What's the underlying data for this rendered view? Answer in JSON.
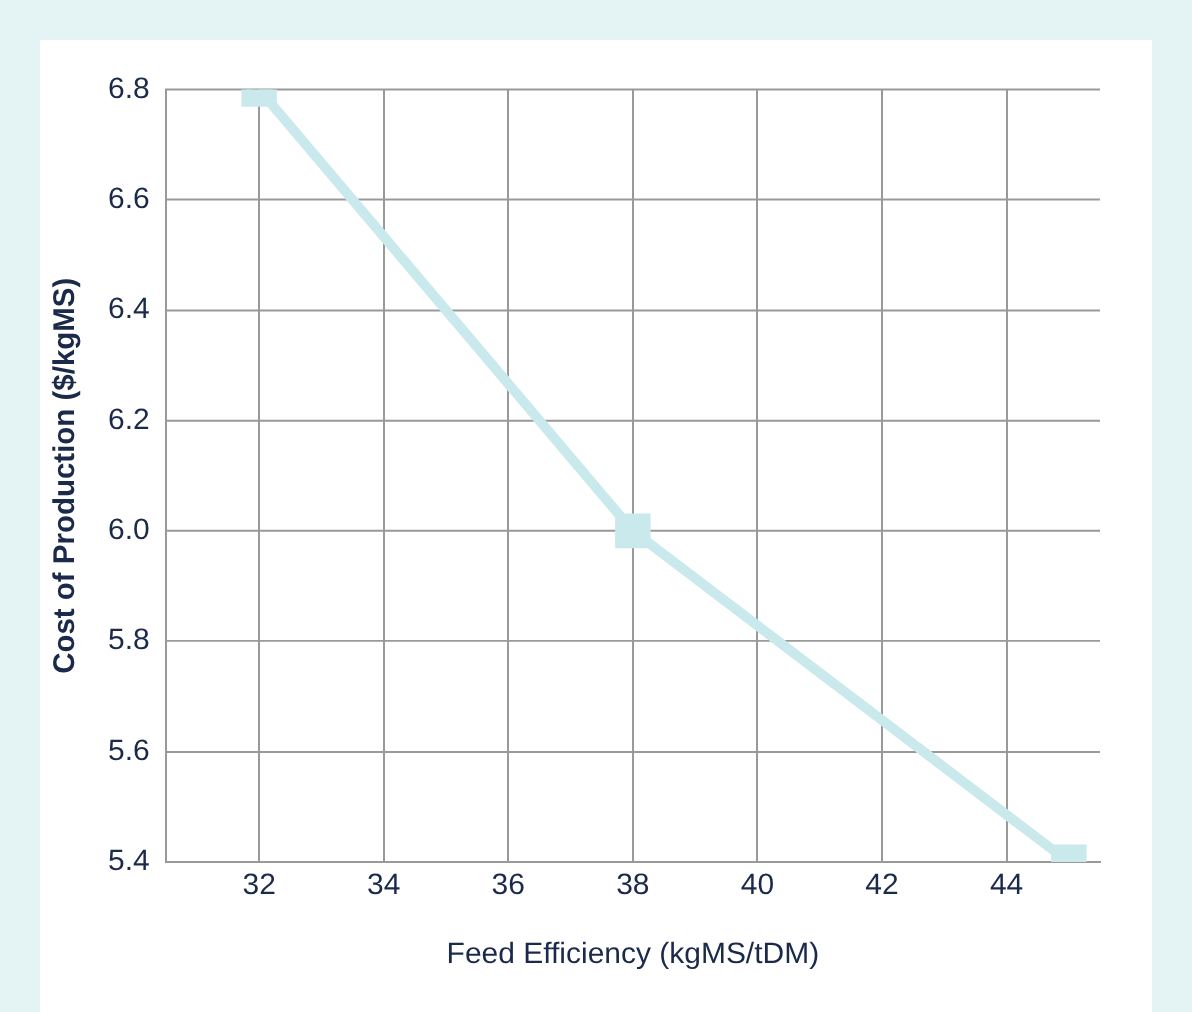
{
  "chart_data": {
    "type": "line",
    "xlabel": "Feed Efficiency (kgMS/tDM)",
    "ylabel": "Cost of Production ($/kgMS)",
    "x": [
      32,
      38,
      45
    ],
    "series": [
      {
        "color": "#c9e9ec",
        "values": [
          6.8,
          6.0,
          5.4
        ]
      }
    ],
    "xlim": [
      30.5,
      45.5
    ],
    "xticks": [
      32,
      34,
      36,
      38,
      40,
      42,
      44
    ],
    "ylim": [
      5.4,
      6.8
    ],
    "yticks": [
      5.4,
      5.6,
      5.8,
      {
        "value": 6.0,
        "label": "6.0"
      },
      6.2,
      6.4,
      6.6,
      6.8
    ],
    "grid": true,
    "legend": false,
    "marker": "square",
    "line_style": "solid"
  }
}
